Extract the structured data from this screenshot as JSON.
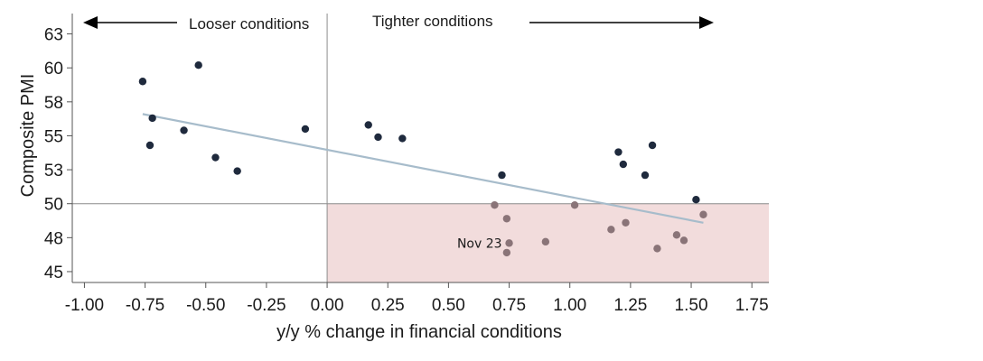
{
  "chart_data": {
    "type": "scatter",
    "xlabel": "y/y % change in financial conditions",
    "ylabel": "Composite PMI",
    "xlim": [
      -1.05,
      1.82
    ],
    "ylim": [
      44.2,
      64
    ],
    "x_ticks": [
      -1.0,
      -0.75,
      -0.5,
      -0.25,
      0.0,
      0.25,
      0.5,
      0.75,
      1.0,
      1.25,
      1.5,
      1.75
    ],
    "x_tick_labels": [
      "-1.00",
      "-0.75",
      "-0.50",
      "-0.25",
      "0.00",
      "0.25",
      "0.50",
      "0.75",
      "1.00",
      "1.25",
      "1.50",
      "1.75"
    ],
    "y_ticks": [
      45,
      47.5,
      50,
      52.5,
      55,
      57.5,
      60,
      62.5
    ],
    "y_tick_labels": [
      "45",
      "48",
      "50",
      "53",
      "55",
      "58",
      "60",
      "63"
    ],
    "reference_lines": {
      "x": 0,
      "y": 50
    },
    "shaded_region": {
      "x": [
        0,
        1.82
      ],
      "y": [
        44.2,
        50
      ],
      "color": "#f2dcdc"
    },
    "annotations": {
      "left": "Looser conditions",
      "right": "Tighter conditions"
    },
    "trendline": {
      "x": [
        -0.76,
        1.55
      ],
      "y": [
        56.6,
        48.6
      ],
      "color": "#a7bccb"
    },
    "point_colors": {
      "above": "#1f2a3d",
      "below": "#8a7478"
    },
    "points": [
      {
        "x": -0.76,
        "y": 59.0
      },
      {
        "x": -0.53,
        "y": 60.2
      },
      {
        "x": -0.72,
        "y": 56.3
      },
      {
        "x": -0.73,
        "y": 54.3
      },
      {
        "x": -0.59,
        "y": 55.4
      },
      {
        "x": -0.46,
        "y": 53.4
      },
      {
        "x": -0.37,
        "y": 52.4
      },
      {
        "x": -0.09,
        "y": 55.5
      },
      {
        "x": 0.17,
        "y": 55.8
      },
      {
        "x": 0.21,
        "y": 54.9
      },
      {
        "x": 0.31,
        "y": 54.8
      },
      {
        "x": 0.72,
        "y": 52.1
      },
      {
        "x": 0.69,
        "y": 49.9
      },
      {
        "x": 1.02,
        "y": 49.9
      },
      {
        "x": 1.2,
        "y": 53.8
      },
      {
        "x": 1.22,
        "y": 52.9
      },
      {
        "x": 1.34,
        "y": 54.3
      },
      {
        "x": 1.31,
        "y": 52.1
      },
      {
        "x": 1.52,
        "y": 50.3
      },
      {
        "x": 0.74,
        "y": 48.9
      },
      {
        "x": 0.75,
        "y": 47.1
      },
      {
        "x": 0.74,
        "y": 46.4
      },
      {
        "x": 0.9,
        "y": 47.2
      },
      {
        "x": 1.17,
        "y": 48.1
      },
      {
        "x": 1.23,
        "y": 48.6
      },
      {
        "x": 1.36,
        "y": 46.7
      },
      {
        "x": 1.44,
        "y": 47.7
      },
      {
        "x": 1.47,
        "y": 47.3
      },
      {
        "x": 1.55,
        "y": 49.2
      }
    ],
    "point_labels": [
      {
        "text": "Nov 23",
        "x": 0.75,
        "y": 47.1
      }
    ]
  }
}
